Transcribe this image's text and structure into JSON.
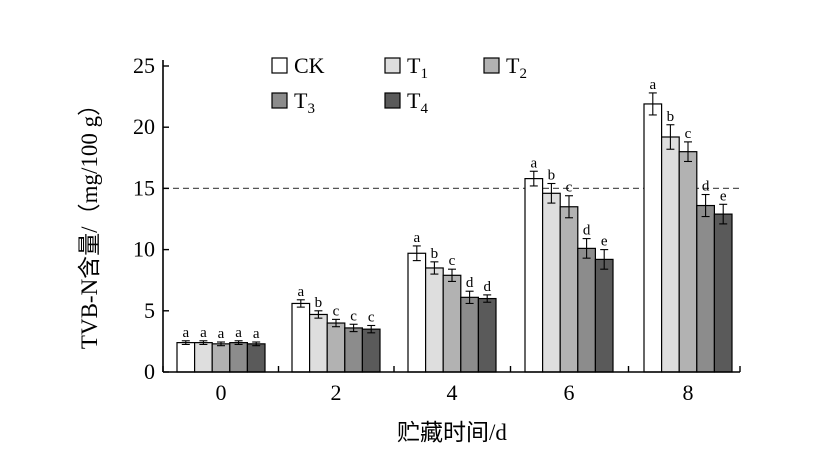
{
  "chart_data": {
    "type": "bar",
    "xlabel": "贮藏时间/d",
    "ylabel": "TVB-N含量/（mg/100 g）",
    "ylim": [
      0,
      25
    ],
    "yticks": [
      "0",
      "5",
      "10",
      "15",
      "20",
      "25"
    ],
    "categories": [
      "0",
      "2",
      "4",
      "6",
      "8"
    ],
    "reference_line": {
      "y": 15,
      "style": "dashed"
    },
    "legend_position": "top",
    "series": [
      {
        "name": "CK",
        "label_main": "CK",
        "label_sub": "",
        "color": "#ffffff",
        "values": [
          2.4,
          5.6,
          9.7,
          15.8,
          21.9
        ],
        "errors": [
          0.15,
          0.3,
          0.6,
          0.6,
          0.9
        ],
        "labels": [
          "a",
          "a",
          "a",
          "a",
          "a"
        ]
      },
      {
        "name": "T1",
        "label_main": "T",
        "label_sub": "1",
        "color": "#dedede",
        "values": [
          2.4,
          4.7,
          8.5,
          14.6,
          19.2
        ],
        "errors": [
          0.15,
          0.3,
          0.5,
          0.8,
          1.0
        ],
        "labels": [
          "a",
          "b",
          "b",
          "b",
          "b"
        ]
      },
      {
        "name": "T2",
        "label_main": "T",
        "label_sub": "2",
        "color": "#b2b2b2",
        "values": [
          2.3,
          4.0,
          7.9,
          13.5,
          18.0
        ],
        "errors": [
          0.15,
          0.3,
          0.5,
          0.9,
          0.8
        ],
        "labels": [
          "a",
          "c",
          "c",
          "c",
          "c"
        ]
      },
      {
        "name": "T3",
        "label_main": "T",
        "label_sub": "3",
        "color": "#8c8c8c",
        "values": [
          2.4,
          3.6,
          6.1,
          10.1,
          13.6
        ],
        "errors": [
          0.15,
          0.3,
          0.5,
          0.8,
          0.9
        ],
        "labels": [
          "a",
          "c",
          "d",
          "d",
          "d"
        ]
      },
      {
        "name": "T4",
        "label_main": "T",
        "label_sub": "4",
        "color": "#5a5a5a",
        "values": [
          2.3,
          3.5,
          6.0,
          9.2,
          12.9
        ],
        "errors": [
          0.15,
          0.3,
          0.3,
          0.8,
          0.8
        ],
        "labels": [
          "a",
          "c",
          "d",
          "e",
          "e"
        ]
      }
    ]
  }
}
